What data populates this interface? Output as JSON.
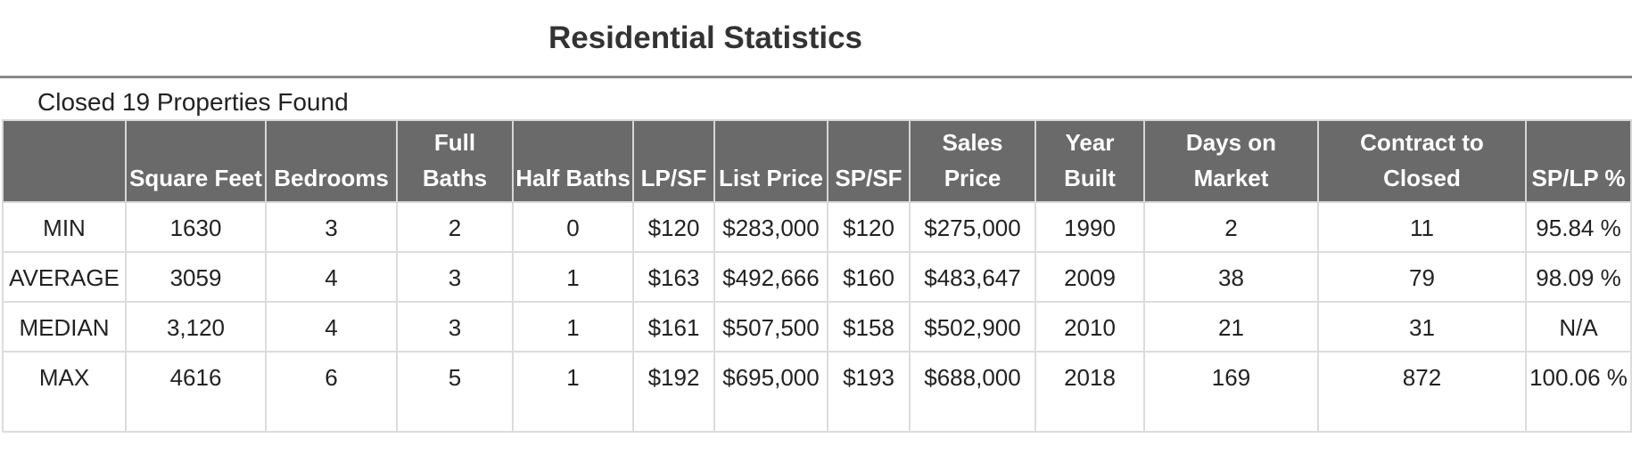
{
  "title": "Residential Statistics",
  "subtitle": "Closed 19 Properties Found",
  "table": {
    "headers": [
      "",
      "Square Feet",
      "Bedrooms",
      "Full Baths",
      "Half Baths",
      "LP/SF",
      "List Price",
      "SP/SF",
      "Sales Price",
      "Year Built",
      "Days on Market",
      "Contract to Closed",
      "SP/LP %"
    ],
    "rows": [
      [
        "MIN",
        "1630",
        "3",
        "2",
        "0",
        "$120",
        "$283,000",
        "$120",
        "$275,000",
        "1990",
        "2",
        "11",
        "95.84 %"
      ],
      [
        "AVERAGE",
        "3059",
        "4",
        "3",
        "1",
        "$163",
        "$492,666",
        "$160",
        "$483,647",
        "2009",
        "38",
        "79",
        "98.09 %"
      ],
      [
        "MEDIAN",
        "3,120",
        "4",
        "3",
        "1",
        "$161",
        "$507,500",
        "$158",
        "$502,900",
        "2010",
        "21",
        "31",
        "N/A"
      ],
      [
        "MAX",
        "4616",
        "6",
        "5",
        "1",
        "$192",
        "$695,000",
        "$193",
        "$688,000",
        "2018",
        "169",
        "872",
        "100.06 %"
      ]
    ]
  }
}
